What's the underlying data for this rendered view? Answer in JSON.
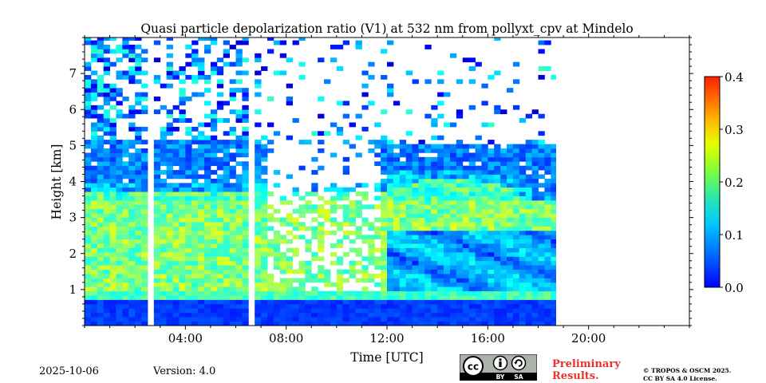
{
  "chart_data": {
    "type": "heatmap",
    "title": "Quasi particle depolarization ratio (V1) at 532 nm from pollyxt_cpv at Mindelo",
    "xlabel": "Time [UTC]",
    "ylabel": "Height [km]",
    "x_ticks": [
      "04:00",
      "08:00",
      "12:00",
      "16:00",
      "20:00"
    ],
    "x_tick_hours": [
      4,
      8,
      12,
      16,
      20
    ],
    "xlim_hours": [
      0,
      24
    ],
    "y_ticks": [
      "1",
      "2",
      "3",
      "4",
      "5",
      "6",
      "7"
    ],
    "y_tick_values": [
      1,
      2,
      3,
      4,
      5,
      6,
      7
    ],
    "ylim_km": [
      0,
      8
    ],
    "data_end_hour": 18.7,
    "data_gaps_hours": [
      [
        2.55,
        2.72
      ],
      [
        6.6,
        6.75
      ]
    ],
    "colorbar": {
      "ticks": [
        "0.0",
        "0.1",
        "0.2",
        "0.3",
        "0.4"
      ],
      "tick_values": [
        0.0,
        0.1,
        0.2,
        0.3,
        0.4
      ],
      "range": [
        0.0,
        0.4
      ],
      "colormap": "jet"
    },
    "layers": [
      {
        "height_km": [
          0.0,
          0.7
        ],
        "depol": 0.06
      },
      {
        "height_km": [
          0.7,
          1.0
        ],
        "depol": 0.15
      },
      {
        "height_km": [
          1.0,
          4.0
        ],
        "depol": 0.2
      },
      {
        "height_km": [
          4.0,
          5.2
        ],
        "depol": 0.1
      }
    ]
  },
  "footer": {
    "date": "2025-10-06",
    "version": "Version: 4.0",
    "preliminary_line1": "Preliminary",
    "preliminary_line2": "Results.",
    "copyright_line1": "© TROPOS & OSCM 2025.",
    "copyright_line2": "CC BY SA 4.0 License.",
    "license_badge": {
      "cc": "cc",
      "by": "BY",
      "sa": "SA"
    }
  },
  "colors": {
    "preliminary": "#e8322f",
    "badge_background": "#aab2ab",
    "badge_strip": "#000000"
  }
}
